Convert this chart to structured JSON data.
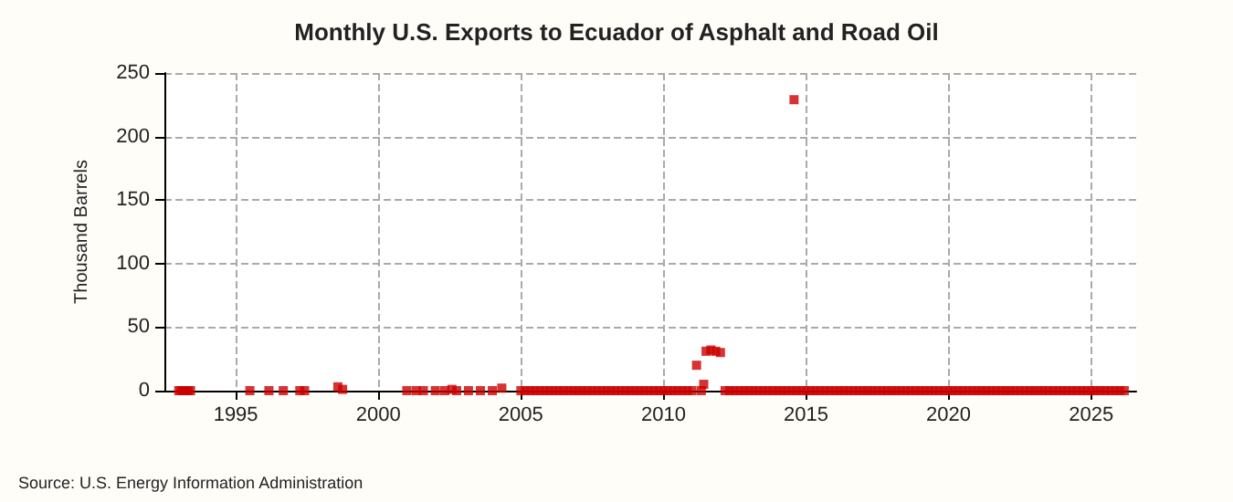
{
  "chart_data": {
    "type": "scatter",
    "title": "Monthly U.S. Exports to Ecuador of Asphalt and Road Oil",
    "ylabel": "Thousand Barrels",
    "annotations": [
      "Source: U.S. Energy Information Administration"
    ],
    "marker": "square",
    "grid": true,
    "xlim": [
      "1992-07",
      "2026-08"
    ],
    "xticks": [
      "1995",
      "2000",
      "2005",
      "2010",
      "2015",
      "2020",
      "2025"
    ],
    "ylim": [
      0,
      250
    ],
    "yticks": [
      0,
      50,
      100,
      150,
      200,
      250
    ],
    "series": [
      {
        "color": "#cc0000",
        "x": [
          "1993-01",
          "1993-02",
          "1993-03",
          "1993-04",
          "1993-05",
          "1993-06",
          "1995-07",
          "1996-03",
          "1996-09",
          "1997-04",
          "1997-06",
          "1998-08",
          "1998-10",
          "2001-01",
          "2001-05",
          "2001-08",
          "2002-01",
          "2002-05",
          "2002-08",
          "2002-10",
          "2003-03",
          "2003-08",
          "2004-01",
          "2004-05",
          "2005-01",
          "2005-03",
          "2005-05",
          "2005-07",
          "2005-09",
          "2005-11",
          "2006-01",
          "2006-03",
          "2006-05",
          "2006-07",
          "2006-09",
          "2006-11",
          "2007-01",
          "2007-03",
          "2007-05",
          "2007-07",
          "2007-09",
          "2007-11",
          "2008-01",
          "2008-03",
          "2008-05",
          "2008-07",
          "2008-09",
          "2008-11",
          "2009-01",
          "2009-03",
          "2009-05",
          "2009-07",
          "2009-09",
          "2009-11",
          "2010-01",
          "2010-03",
          "2010-05",
          "2010-07",
          "2010-09",
          "2010-11",
          "2011-01",
          "2011-03",
          "2011-05",
          "2011-06",
          "2011-07",
          "2011-09",
          "2011-11",
          "2012-01",
          "2012-03",
          "2012-05",
          "2012-07",
          "2012-09",
          "2012-11",
          "2013-01",
          "2013-03",
          "2013-05",
          "2013-07",
          "2013-09",
          "2013-11",
          "2014-01",
          "2014-03",
          "2014-05",
          "2014-07",
          "2014-08",
          "2014-09",
          "2014-11",
          "2015-01",
          "2015-03",
          "2015-05",
          "2015-07",
          "2015-09",
          "2015-11",
          "2016-01",
          "2016-03",
          "2016-05",
          "2016-07",
          "2016-09",
          "2016-11",
          "2017-01",
          "2017-03",
          "2017-05",
          "2017-07",
          "2017-09",
          "2017-11",
          "2018-01",
          "2018-03",
          "2018-05",
          "2018-07",
          "2018-09",
          "2018-11",
          "2019-01",
          "2019-03",
          "2019-05",
          "2019-07",
          "2019-09",
          "2019-11",
          "2020-01",
          "2020-03",
          "2020-05",
          "2020-07",
          "2020-09",
          "2020-11",
          "2021-01",
          "2021-03",
          "2021-05",
          "2021-07",
          "2021-09",
          "2021-11",
          "2022-01",
          "2022-03",
          "2022-05",
          "2022-07",
          "2022-09",
          "2022-11",
          "2023-01",
          "2023-03",
          "2023-05",
          "2023-07",
          "2023-09",
          "2023-11",
          "2024-01",
          "2024-03",
          "2024-05",
          "2024-07",
          "2024-09",
          "2024-11",
          "2025-01",
          "2025-03",
          "2025-05",
          "2025-07",
          "2025-09",
          "2025-11",
          "2026-01",
          "2026-03"
        ],
        "values": [
          0,
          0,
          0,
          0,
          0,
          0,
          0,
          0,
          0,
          0,
          0,
          3,
          1,
          0,
          0,
          0,
          0,
          0,
          1,
          0,
          0,
          0,
          0,
          2,
          0,
          0,
          0,
          0,
          0,
          0,
          0,
          0,
          0,
          0,
          0,
          0,
          0,
          0,
          0,
          0,
          0,
          0,
          0,
          0,
          0,
          0,
          0,
          0,
          0,
          0,
          0,
          0,
          0,
          0,
          0,
          0,
          0,
          0,
          0,
          0,
          0,
          20,
          0,
          5,
          31,
          32,
          31,
          30,
          0,
          0,
          0,
          0,
          0,
          0,
          0,
          0,
          0,
          0,
          0,
          0,
          0,
          0,
          0,
          229,
          0,
          0,
          0,
          0,
          0,
          0,
          0,
          0,
          0,
          0,
          0,
          0,
          0,
          0,
          0,
          0,
          0,
          0,
          0,
          0,
          0,
          0,
          0,
          0,
          0,
          0,
          0,
          0,
          0,
          0,
          0,
          0,
          0,
          0,
          0,
          0,
          0,
          0,
          0,
          0,
          0,
          0,
          0,
          0,
          0,
          0,
          0,
          0,
          0,
          0,
          0,
          0,
          0,
          0,
          0,
          0,
          0,
          0,
          0,
          0,
          0,
          0,
          0,
          0,
          0,
          0,
          0,
          0,
          0,
          0
        ]
      }
    ]
  }
}
